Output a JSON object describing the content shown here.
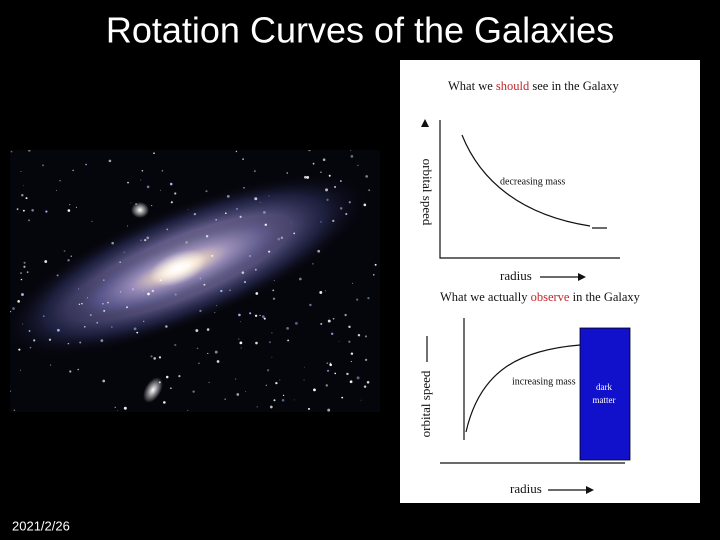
{
  "title": "Rotation Curves of the Galaxies",
  "date": "2021/2/26",
  "diagrams": [
    {
      "heading": [
        "What we ",
        "should",
        " see in the Galaxy"
      ],
      "y_label": "orbital speed",
      "curve_label": "decreasing mass",
      "x_label": "radius"
    },
    {
      "heading": [
        "What we actually ",
        "observe",
        " in the Galaxy"
      ],
      "y_label": "orbital speed",
      "curve_label": "increasing mass",
      "region_label": [
        "dark",
        "matter"
      ],
      "x_label": "radius"
    }
  ]
}
